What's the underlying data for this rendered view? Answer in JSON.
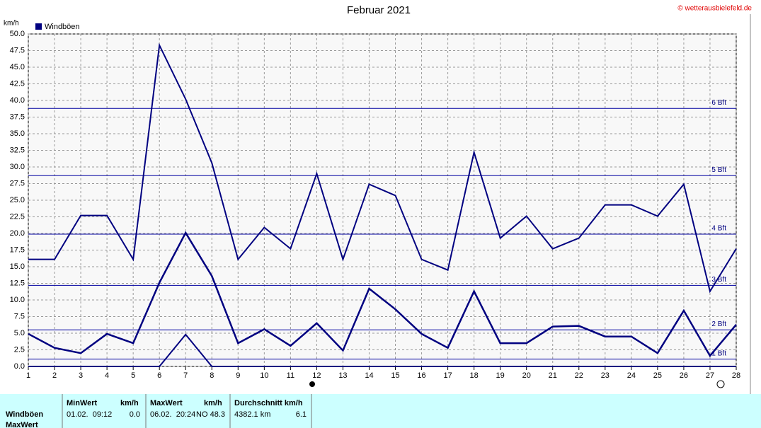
{
  "chart_data": {
    "type": "line",
    "title": "Februar 2021",
    "copyright": "© wetterausbielefeld.de",
    "y_unit": "km/h",
    "x": [
      1,
      2,
      3,
      4,
      5,
      6,
      7,
      8,
      9,
      10,
      11,
      12,
      13,
      14,
      15,
      16,
      17,
      18,
      19,
      20,
      21,
      22,
      23,
      24,
      25,
      26,
      27,
      28
    ],
    "xlim": [
      1,
      28
    ],
    "xticks": [
      1,
      2,
      3,
      4,
      5,
      6,
      7,
      8,
      9,
      10,
      11,
      12,
      13,
      14,
      15,
      16,
      17,
      18,
      19,
      20,
      21,
      22,
      23,
      24,
      25,
      26,
      27,
      28
    ],
    "ylim": [
      0,
      50
    ],
    "yticks": [
      {
        "value": 0,
        "label": "0.0"
      },
      {
        "value": 2.5,
        "label": "2.5"
      },
      {
        "value": 5,
        "label": "5.0"
      },
      {
        "value": 7.5,
        "label": "7.5"
      },
      {
        "value": 10,
        "label": "10.0"
      },
      {
        "value": 12.5,
        "label": "12.5"
      },
      {
        "value": 15,
        "label": "15.0"
      },
      {
        "value": 17.5,
        "label": "17.5"
      },
      {
        "value": 20,
        "label": "20.0"
      },
      {
        "value": 22.5,
        "label": "22.5"
      },
      {
        "value": 25,
        "label": "25.0"
      },
      {
        "value": 27.5,
        "label": "27.5"
      },
      {
        "value": 30,
        "label": "30.0"
      },
      {
        "value": 32.5,
        "label": "32.5"
      },
      {
        "value": 35,
        "label": "35.0"
      },
      {
        "value": 37.5,
        "label": "37.5"
      },
      {
        "value": 40,
        "label": "40.0"
      },
      {
        "value": 42.5,
        "label": "42.5"
      },
      {
        "value": 45,
        "label": "45.0"
      },
      {
        "value": 47.5,
        "label": "47.5"
      },
      {
        "value": 50,
        "label": "50.0"
      }
    ],
    "grid": true,
    "series": [
      {
        "name": "Windböen",
        "color": "#000080",
        "values": [
          16.1,
          16.1,
          22.7,
          22.7,
          16.1,
          48.3,
          40.2,
          30.6,
          16.1,
          20.9,
          17.7,
          29.0,
          16.1,
          27.4,
          25.7,
          16.1,
          14.5,
          32.2,
          19.3,
          22.6,
          17.7,
          19.3,
          24.3,
          24.3,
          22.6,
          27.4,
          11.3,
          17.7
        ]
      },
      {
        "color": "#000080",
        "values": [
          4.9,
          2.8,
          2.0,
          4.9,
          3.5,
          12.6,
          20.1,
          13.6,
          3.5,
          5.6,
          3.1,
          6.5,
          2.4,
          11.7,
          8.6,
          4.9,
          2.8,
          11.3,
          3.5,
          3.5,
          6.0,
          6.1,
          4.5,
          4.5,
          2.0,
          8.4,
          1.6,
          6.3
        ]
      },
      {
        "color": "#000080",
        "values": [
          0,
          0,
          0,
          0,
          0,
          0,
          4.8,
          0,
          0,
          0,
          0,
          0,
          0,
          0,
          0,
          0,
          0,
          0,
          0,
          0,
          0,
          0,
          0,
          0,
          0,
          0,
          0,
          0
        ]
      }
    ],
    "reference_lines": [
      {
        "label": "1 Bft",
        "value": 1.1
      },
      {
        "label": "2 Bft",
        "value": 5.5
      },
      {
        "label": "3 Bft",
        "value": 12.2
      },
      {
        "label": "4 Bft",
        "value": 19.9
      },
      {
        "label": "5 Bft",
        "value": 28.7
      },
      {
        "label": "6 Bft",
        "value": 38.8
      }
    ]
  },
  "stats_table": {
    "headers": [
      "MinWert",
      "km/h",
      "MaxWert",
      "km/h",
      "Durchschnitt km/h"
    ],
    "rows": [
      [
        "Windböen",
        "01.02.  09:12",
        "0.0",
        "06.02.  20:24",
        "NO 48.3",
        "4382.1 km",
        "6.1"
      ],
      [
        "MaxWert"
      ]
    ]
  }
}
